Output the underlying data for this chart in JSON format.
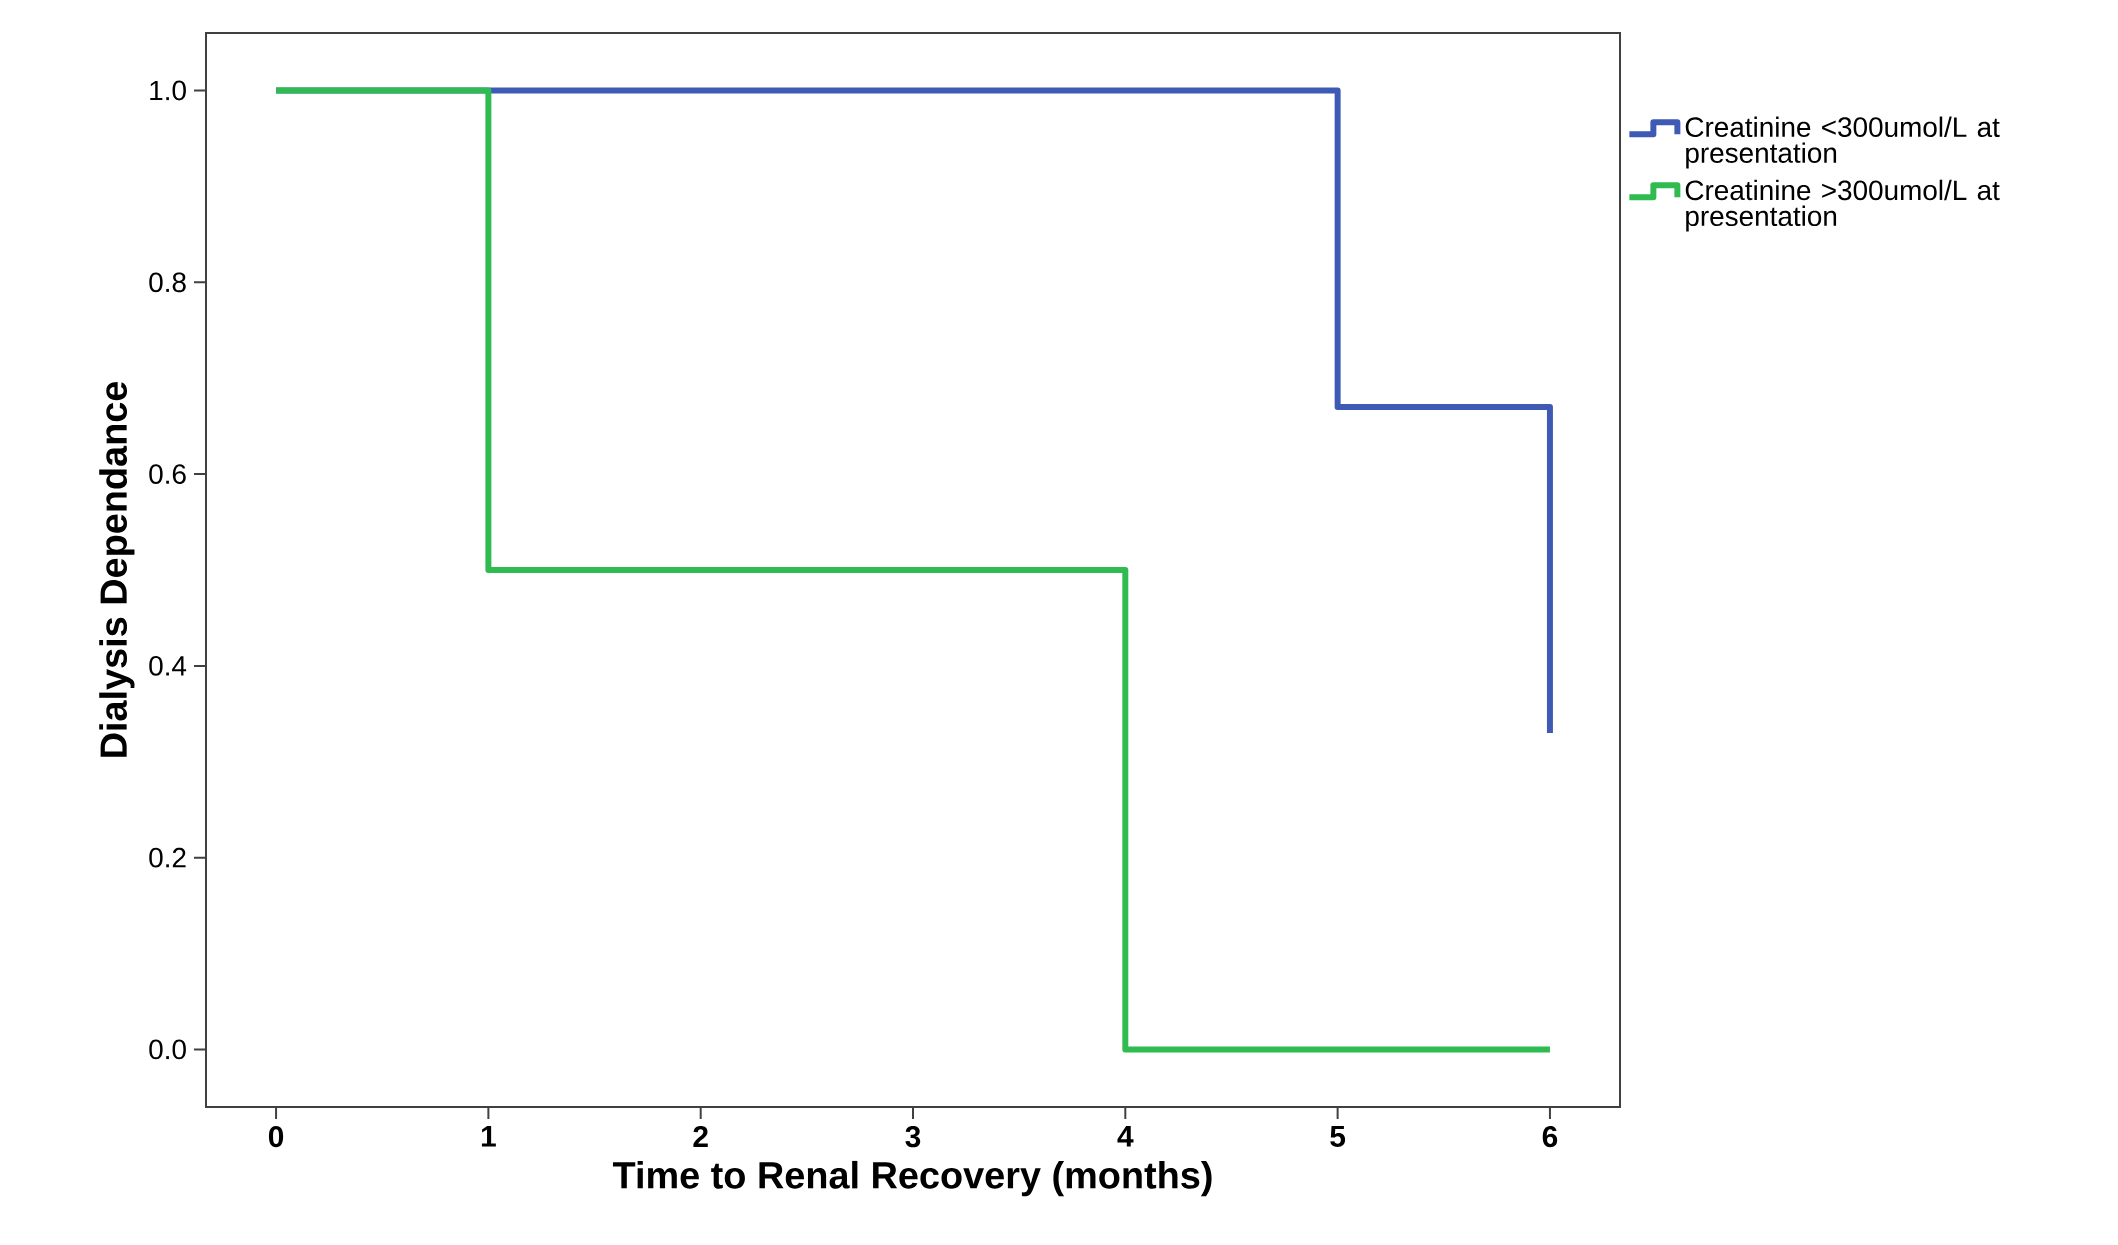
{
  "chart_data": {
    "type": "step",
    "xlabel": "Time to Renal Recovery (months)",
    "ylabel": "Dialysis Dependance",
    "series": [
      {
        "name": "Creatinine <300umol/L at presentation",
        "color": "#3f5ab4",
        "x": [
          0,
          5,
          6
        ],
        "values": [
          1.0,
          0.67,
          0.33
        ]
      },
      {
        "name": "Creatinine >300umol/L at presentation",
        "color": "#2fbb4f",
        "x": [
          0,
          1,
          4,
          6
        ],
        "values": [
          1.0,
          0.5,
          0.0,
          0.0
        ]
      }
    ],
    "xlim": [
      -0.33,
      6.33
    ],
    "ylim": [
      -0.06,
      1.06
    ],
    "xticks": [
      0,
      1,
      2,
      3,
      4,
      5,
      6
    ],
    "yticks": [
      {
        "value": 0.0,
        "label": "0.0"
      },
      {
        "value": 0.2,
        "label": "0.2"
      },
      {
        "value": 0.4,
        "label": "0.4"
      },
      {
        "value": 0.6,
        "label": "0.6"
      },
      {
        "value": 0.8,
        "label": "0.8"
      },
      {
        "value": 1.0,
        "label": "1.0"
      }
    ],
    "legend": "top right",
    "grid": false,
    "marker": "none",
    "line_style": "solid"
  }
}
